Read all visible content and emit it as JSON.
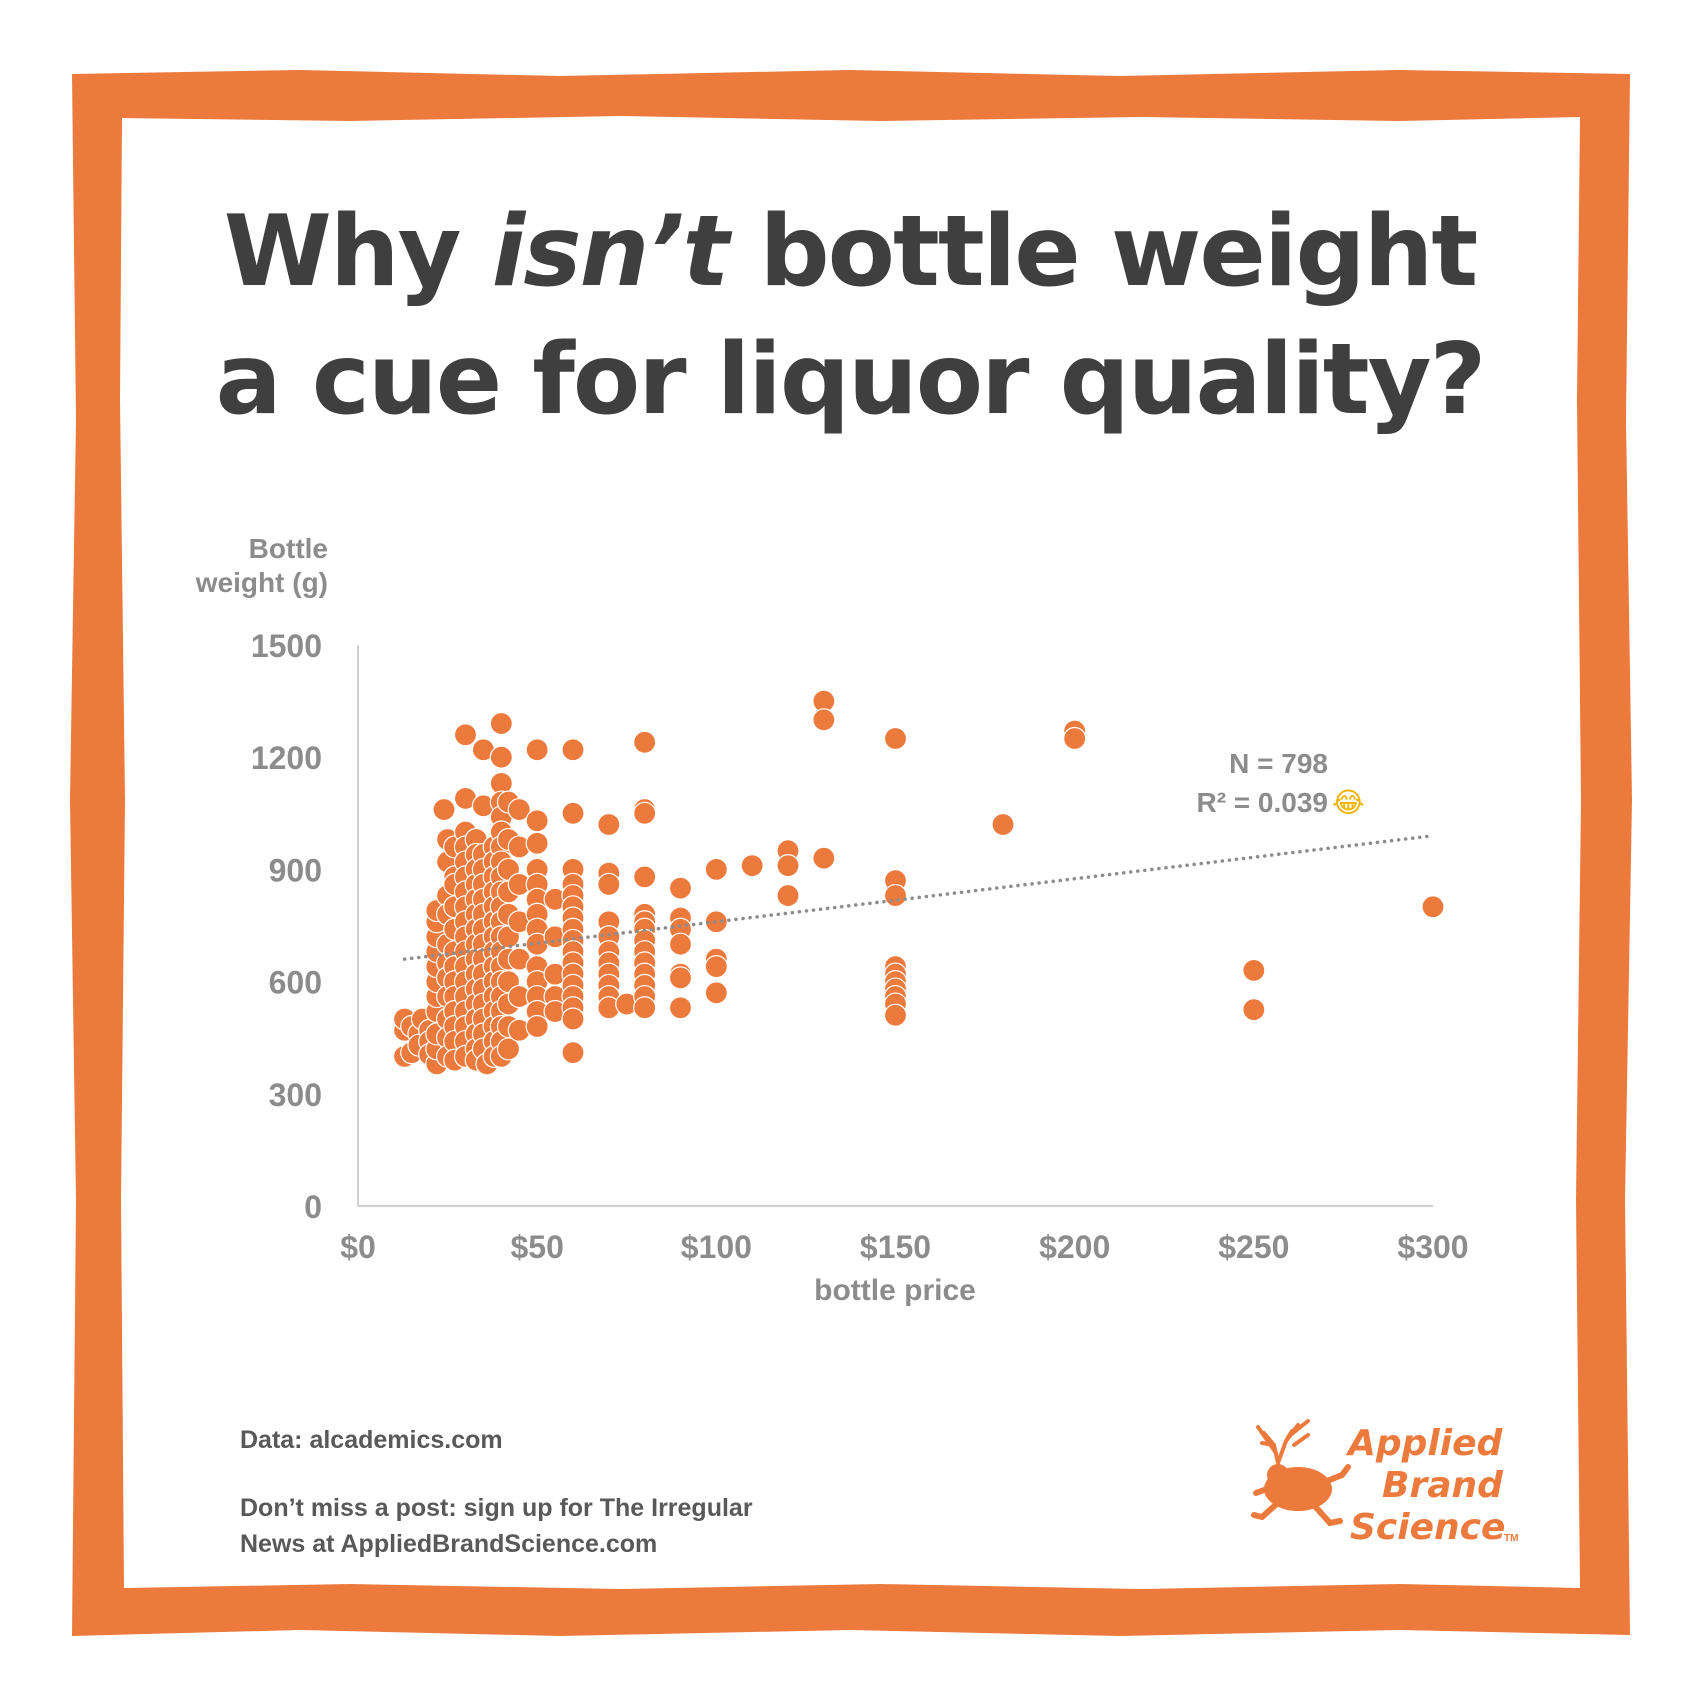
{
  "title": {
    "line1_pre": "Why ",
    "line1_em": "isn’t",
    "line1_post": " bottle weight",
    "line2": "a cue for liquor quality?"
  },
  "chart_data": {
    "type": "scatter",
    "ylabel_line1": "Bottle",
    "ylabel_line2": "weight (g)",
    "xlabel": "bottle price",
    "xlim": [
      0,
      300
    ],
    "ylim": [
      0,
      1500
    ],
    "x_ticks": [
      "$0",
      "$50",
      "$100",
      "$150",
      "$200",
      "$250",
      "$300"
    ],
    "y_ticks": [
      "0",
      "300",
      "600",
      "900",
      "1200",
      "1500"
    ],
    "grid": false,
    "annotation_n": "N = 798",
    "annotation_r2": "R² = 0.039",
    "annotation_emoji": "😂",
    "trendline": {
      "style": "dotted",
      "x": [
        13,
        300
      ],
      "y": [
        660,
        990
      ]
    },
    "points": [
      [
        13,
        400
      ],
      [
        13,
        470
      ],
      [
        13,
        500
      ],
      [
        15,
        480
      ],
      [
        15,
        410
      ],
      [
        17,
        460
      ],
      [
        17,
        430
      ],
      [
        18,
        500
      ],
      [
        20,
        470
      ],
      [
        20,
        440
      ],
      [
        20,
        405
      ],
      [
        22,
        380
      ],
      [
        22,
        420
      ],
      [
        22,
        460
      ],
      [
        22,
        520
      ],
      [
        22,
        560
      ],
      [
        22,
        600
      ],
      [
        22,
        640
      ],
      [
        22,
        680
      ],
      [
        22,
        720
      ],
      [
        22,
        760
      ],
      [
        22,
        790
      ],
      [
        24,
        1060
      ],
      [
        25,
        980
      ],
      [
        25,
        920
      ],
      [
        25,
        830
      ],
      [
        25,
        780
      ],
      [
        25,
        700
      ],
      [
        25,
        650
      ],
      [
        25,
        610
      ],
      [
        25,
        560
      ],
      [
        25,
        500
      ],
      [
        25,
        450
      ],
      [
        25,
        400
      ],
      [
        27,
        960
      ],
      [
        27,
        880
      ],
      [
        27,
        860
      ],
      [
        27,
        800
      ],
      [
        27,
        740
      ],
      [
        27,
        680
      ],
      [
        27,
        640
      ],
      [
        27,
        600
      ],
      [
        27,
        560
      ],
      [
        27,
        520
      ],
      [
        27,
        480
      ],
      [
        27,
        440
      ],
      [
        27,
        390
      ],
      [
        30,
        1260
      ],
      [
        30,
        1090
      ],
      [
        30,
        1000
      ],
      [
        30,
        960
      ],
      [
        30,
        920
      ],
      [
        30,
        880
      ],
      [
        30,
        840
      ],
      [
        30,
        800
      ],
      [
        30,
        760
      ],
      [
        30,
        720
      ],
      [
        30,
        680
      ],
      [
        30,
        640
      ],
      [
        30,
        600
      ],
      [
        30,
        560
      ],
      [
        30,
        520
      ],
      [
        30,
        480
      ],
      [
        30,
        440
      ],
      [
        30,
        400
      ],
      [
        33,
        980
      ],
      [
        33,
        940
      ],
      [
        33,
        900
      ],
      [
        33,
        860
      ],
      [
        33,
        820
      ],
      [
        33,
        780
      ],
      [
        33,
        740
      ],
      [
        33,
        700
      ],
      [
        33,
        660
      ],
      [
        33,
        620
      ],
      [
        33,
        580
      ],
      [
        33,
        540
      ],
      [
        33,
        500
      ],
      [
        33,
        460
      ],
      [
        33,
        420
      ],
      [
        33,
        390
      ],
      [
        35,
        1220
      ],
      [
        35,
        1070
      ],
      [
        35,
        940
      ],
      [
        35,
        900
      ],
      [
        35,
        860
      ],
      [
        35,
        820
      ],
      [
        35,
        780
      ],
      [
        35,
        740
      ],
      [
        35,
        700
      ],
      [
        35,
        660
      ],
      [
        35,
        620
      ],
      [
        35,
        580
      ],
      [
        35,
        540
      ],
      [
        35,
        500
      ],
      [
        35,
        460
      ],
      [
        35,
        420
      ],
      [
        36,
        380
      ],
      [
        38,
        960
      ],
      [
        38,
        920
      ],
      [
        38,
        880
      ],
      [
        38,
        840
      ],
      [
        38,
        800
      ],
      [
        38,
        760
      ],
      [
        38,
        720
      ],
      [
        38,
        680
      ],
      [
        38,
        640
      ],
      [
        38,
        600
      ],
      [
        38,
        560
      ],
      [
        38,
        520
      ],
      [
        38,
        480
      ],
      [
        38,
        440
      ],
      [
        38,
        400
      ],
      [
        40,
        1290
      ],
      [
        40,
        1200
      ],
      [
        40,
        1130
      ],
      [
        40,
        1080
      ],
      [
        40,
        1040
      ],
      [
        40,
        1000
      ],
      [
        40,
        960
      ],
      [
        40,
        920
      ],
      [
        40,
        880
      ],
      [
        40,
        840
      ],
      [
        40,
        800
      ],
      [
        40,
        760
      ],
      [
        40,
        720
      ],
      [
        40,
        680
      ],
      [
        40,
        640
      ],
      [
        40,
        600
      ],
      [
        40,
        560
      ],
      [
        40,
        520
      ],
      [
        40,
        480
      ],
      [
        40,
        440
      ],
      [
        40,
        400
      ],
      [
        42,
        1080
      ],
      [
        42,
        980
      ],
      [
        42,
        900
      ],
      [
        42,
        840
      ],
      [
        42,
        780
      ],
      [
        42,
        720
      ],
      [
        42,
        660
      ],
      [
        42,
        600
      ],
      [
        42,
        540
      ],
      [
        42,
        480
      ],
      [
        42,
        420
      ],
      [
        45,
        1060
      ],
      [
        45,
        960
      ],
      [
        45,
        860
      ],
      [
        45,
        760
      ],
      [
        45,
        660
      ],
      [
        45,
        560
      ],
      [
        45,
        470
      ],
      [
        50,
        1220
      ],
      [
        50,
        1030
      ],
      [
        50,
        970
      ],
      [
        50,
        900
      ],
      [
        50,
        860
      ],
      [
        50,
        820
      ],
      [
        50,
        780
      ],
      [
        50,
        740
      ],
      [
        50,
        700
      ],
      [
        50,
        640
      ],
      [
        50,
        600
      ],
      [
        50,
        560
      ],
      [
        50,
        520
      ],
      [
        50,
        480
      ],
      [
        55,
        820
      ],
      [
        55,
        720
      ],
      [
        55,
        620
      ],
      [
        55,
        560
      ],
      [
        55,
        520
      ],
      [
        60,
        1220
      ],
      [
        60,
        1050
      ],
      [
        60,
        900
      ],
      [
        60,
        860
      ],
      [
        60,
        830
      ],
      [
        60,
        800
      ],
      [
        60,
        770
      ],
      [
        60,
        740
      ],
      [
        60,
        710
      ],
      [
        60,
        680
      ],
      [
        60,
        650
      ],
      [
        60,
        620
      ],
      [
        60,
        590
      ],
      [
        60,
        560
      ],
      [
        60,
        530
      ],
      [
        60,
        500
      ],
      [
        60,
        410
      ],
      [
        70,
        1020
      ],
      [
        70,
        890
      ],
      [
        70,
        860
      ],
      [
        70,
        760
      ],
      [
        70,
        720
      ],
      [
        70,
        680
      ],
      [
        70,
        650
      ],
      [
        70,
        620
      ],
      [
        70,
        590
      ],
      [
        70,
        560
      ],
      [
        70,
        530
      ],
      [
        75,
        540
      ],
      [
        80,
        1240
      ],
      [
        80,
        1060
      ],
      [
        80,
        1050
      ],
      [
        80,
        880
      ],
      [
        80,
        780
      ],
      [
        80,
        760
      ],
      [
        80,
        740
      ],
      [
        80,
        710
      ],
      [
        80,
        680
      ],
      [
        80,
        650
      ],
      [
        80,
        620
      ],
      [
        80,
        590
      ],
      [
        80,
        560
      ],
      [
        80,
        530
      ],
      [
        90,
        850
      ],
      [
        90,
        770
      ],
      [
        90,
        740
      ],
      [
        90,
        700
      ],
      [
        90,
        620
      ],
      [
        90,
        610
      ],
      [
        90,
        530
      ],
      [
        100,
        900
      ],
      [
        100,
        760
      ],
      [
        100,
        660
      ],
      [
        100,
        640
      ],
      [
        100,
        570
      ],
      [
        110,
        910
      ],
      [
        120,
        950
      ],
      [
        120,
        910
      ],
      [
        120,
        830
      ],
      [
        130,
        1350
      ],
      [
        130,
        1300
      ],
      [
        130,
        930
      ],
      [
        150,
        1250
      ],
      [
        150,
        870
      ],
      [
        150,
        830
      ],
      [
        150,
        640
      ],
      [
        150,
        620
      ],
      [
        150,
        600
      ],
      [
        150,
        580
      ],
      [
        150,
        560
      ],
      [
        150,
        540
      ],
      [
        150,
        510
      ],
      [
        180,
        1020
      ],
      [
        200,
        1270
      ],
      [
        200,
        1250
      ],
      [
        250,
        630
      ],
      [
        250,
        525
      ],
      [
        300,
        800
      ]
    ]
  },
  "footer": {
    "data_source": "Data: alcademics.com",
    "cta_line1": "Don’t miss a post: sign up for The Irregular",
    "cta_line2": "News at AppliedBrandScience.com"
  },
  "logo": {
    "word1": "Applied",
    "word2": "Brand",
    "word3": "Science",
    "tm": "TM"
  },
  "colors": {
    "frame": "#ec7a3c",
    "point": "#ec7a3c",
    "title": "#3f3f3f",
    "axis_text": "#8c8c8c",
    "trend": "#8c8c8c",
    "footer_text": "#595959"
  }
}
